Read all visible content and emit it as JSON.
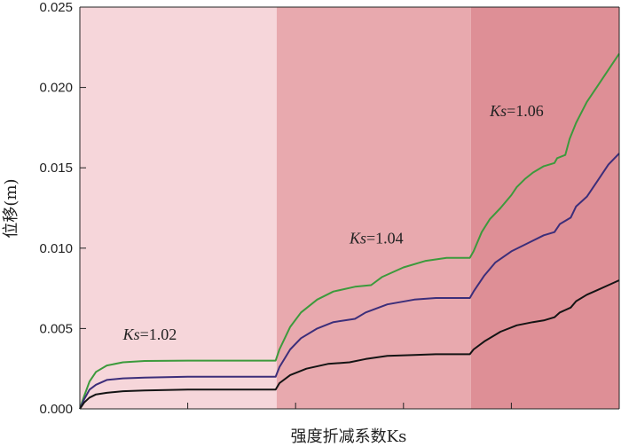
{
  "chart_data": {
    "type": "line",
    "xlabel": "强度折减系数Ks",
    "ylabel": "位移(m)",
    "ylim": [
      0,
      0.025
    ],
    "yticks": [
      "0.000",
      "0.005",
      "0.010",
      "0.015",
      "0.020",
      "0.025"
    ],
    "x_domain": [
      0,
      100
    ],
    "grid": false,
    "stages": [
      {
        "label": "Ks=1.02",
        "label_main": "Ks",
        "label_rest": "=1.02",
        "x_start": 0,
        "x_end": 36.5,
        "color": "#f6d6da"
      },
      {
        "label": "Ks=1.04",
        "label_main": "Ks",
        "label_rest": "=1.04",
        "x_start": 36.5,
        "x_end": 72.5,
        "color": "#e8a9ae"
      },
      {
        "label": "Ks=1.06",
        "label_main": "Ks",
        "label_rest": "=1.06",
        "x_start": 72.5,
        "x_end": 100,
        "color": "#de8f96"
      }
    ],
    "series": [
      {
        "color": "#3c9a3c",
        "points": [
          [
            0,
            0
          ],
          [
            0.8,
            0.0008
          ],
          [
            1.8,
            0.0017
          ],
          [
            3,
            0.0023
          ],
          [
            5,
            0.0027
          ],
          [
            8,
            0.0029
          ],
          [
            12,
            0.00298
          ],
          [
            20,
            0.003
          ],
          [
            30,
            0.003
          ],
          [
            36.3,
            0.003
          ],
          [
            37,
            0.0037
          ],
          [
            39,
            0.0051
          ],
          [
            41,
            0.006
          ],
          [
            44,
            0.0068
          ],
          [
            47,
            0.0073
          ],
          [
            51,
            0.0076
          ],
          [
            54,
            0.0077
          ],
          [
            56,
            0.0082
          ],
          [
            60,
            0.0088
          ],
          [
            64,
            0.0092
          ],
          [
            68,
            0.0094
          ],
          [
            72.3,
            0.0094
          ],
          [
            73,
            0.0098
          ],
          [
            74.5,
            0.011
          ],
          [
            76,
            0.0118
          ],
          [
            78,
            0.0125
          ],
          [
            80,
            0.0133
          ],
          [
            81,
            0.0138
          ],
          [
            82.5,
            0.0143
          ],
          [
            84,
            0.0147
          ],
          [
            86,
            0.0151
          ],
          [
            88,
            0.0153
          ],
          [
            88.5,
            0.0156
          ],
          [
            90,
            0.0158
          ],
          [
            90.8,
            0.0168
          ],
          [
            92,
            0.0178
          ],
          [
            94,
            0.0191
          ],
          [
            96,
            0.0201
          ],
          [
            98,
            0.0211
          ],
          [
            99,
            0.0216
          ],
          [
            100,
            0.0221
          ]
        ]
      },
      {
        "color": "#3c2e7a",
        "points": [
          [
            0,
            0
          ],
          [
            0.8,
            0.0006
          ],
          [
            1.8,
            0.0012
          ],
          [
            3,
            0.0015
          ],
          [
            5,
            0.0018
          ],
          [
            8,
            0.0019
          ],
          [
            12,
            0.00195
          ],
          [
            20,
            0.002
          ],
          [
            30,
            0.002
          ],
          [
            36.3,
            0.002
          ],
          [
            37,
            0.0026
          ],
          [
            39,
            0.0037
          ],
          [
            41,
            0.0044
          ],
          [
            44,
            0.005
          ],
          [
            47,
            0.0054
          ],
          [
            51,
            0.0056
          ],
          [
            53,
            0.006
          ],
          [
            57,
            0.0065
          ],
          [
            62,
            0.0068
          ],
          [
            66,
            0.0069
          ],
          [
            72.3,
            0.0069
          ],
          [
            73,
            0.0073
          ],
          [
            75,
            0.0083
          ],
          [
            77,
            0.0091
          ],
          [
            80,
            0.0098
          ],
          [
            83,
            0.0103
          ],
          [
            86,
            0.0108
          ],
          [
            88,
            0.011
          ],
          [
            89,
            0.0115
          ],
          [
            91,
            0.0119
          ],
          [
            92,
            0.0126
          ],
          [
            94,
            0.0132
          ],
          [
            96,
            0.0142
          ],
          [
            98,
            0.0152
          ],
          [
            100,
            0.0159
          ]
        ]
      },
      {
        "color": "#141414",
        "points": [
          [
            0,
            0
          ],
          [
            0.8,
            0.0004
          ],
          [
            1.8,
            0.0007
          ],
          [
            3,
            0.0009
          ],
          [
            5,
            0.001
          ],
          [
            8,
            0.0011
          ],
          [
            12,
            0.00115
          ],
          [
            20,
            0.0012
          ],
          [
            30,
            0.0012
          ],
          [
            36.3,
            0.0012
          ],
          [
            37,
            0.0016
          ],
          [
            39,
            0.0021
          ],
          [
            42,
            0.0025
          ],
          [
            46,
            0.0028
          ],
          [
            50,
            0.0029
          ],
          [
            53,
            0.0031
          ],
          [
            57,
            0.0033
          ],
          [
            62,
            0.00335
          ],
          [
            66,
            0.0034
          ],
          [
            72.3,
            0.0034
          ],
          [
            73,
            0.0037
          ],
          [
            75,
            0.0042
          ],
          [
            78,
            0.0048
          ],
          [
            81,
            0.0052
          ],
          [
            84,
            0.0054
          ],
          [
            86,
            0.0055
          ],
          [
            88,
            0.0057
          ],
          [
            89,
            0.006
          ],
          [
            91,
            0.0063
          ],
          [
            92,
            0.0067
          ],
          [
            94,
            0.0071
          ],
          [
            96,
            0.0074
          ],
          [
            98,
            0.0077
          ],
          [
            100,
            0.008
          ]
        ]
      }
    ]
  }
}
